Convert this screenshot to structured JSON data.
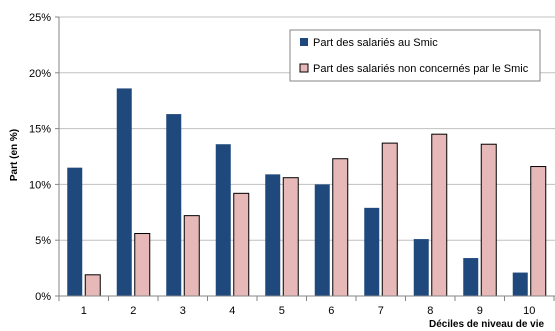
{
  "chart_data": {
    "type": "bar",
    "categories": [
      "1",
      "2",
      "3",
      "4",
      "5",
      "6",
      "7",
      "8",
      "9",
      "10"
    ],
    "series": [
      {
        "name": "Part des salariés au Smic",
        "color": "#1f497d",
        "values": [
          11.5,
          18.6,
          16.3,
          13.6,
          10.9,
          10.0,
          7.9,
          5.1,
          3.4,
          2.1
        ]
      },
      {
        "name": "Part des salariés non concernés par le Smic",
        "color": "#e6b9b8",
        "values": [
          1.9,
          5.6,
          7.2,
          9.2,
          10.6,
          12.3,
          13.7,
          14.5,
          13.6,
          11.6
        ]
      }
    ],
    "yticks": [
      "0%",
      "5%",
      "10%",
      "15%",
      "20%",
      "25%"
    ],
    "ylim": [
      0,
      25
    ],
    "xlabel": "Déciles de niveau de vie",
    "ylabel": "Part (en %)",
    "grid": true,
    "legend_position": "top-right"
  }
}
